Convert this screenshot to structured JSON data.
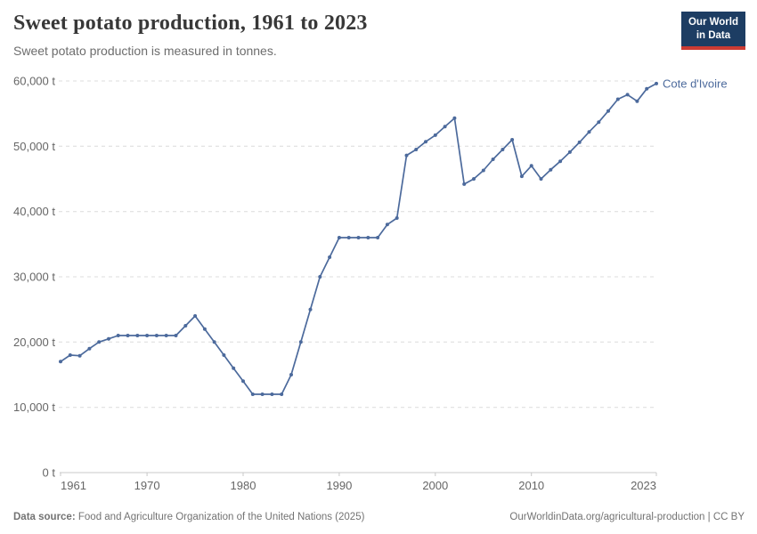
{
  "header": {
    "title": "Sweet potato production, 1961 to 2023",
    "subtitle": "Sweet potato production is measured in tonnes.",
    "logo": {
      "line1": "Our World",
      "line2": "in Data",
      "bg_color": "#1d3d63",
      "accent_color": "#cc3b33"
    }
  },
  "chart_data": {
    "type": "line",
    "title": "Sweet potato production, 1961 to 2023",
    "subtitle": "Sweet potato production is measured in tonnes.",
    "xlabel": "",
    "ylabel": "",
    "unit": "t",
    "xlim": [
      1961,
      2023
    ],
    "ylim": [
      0,
      60000
    ],
    "grid": "horizontal-dashed",
    "legend": "line-end-label",
    "x_ticks": [
      {
        "value": 1961,
        "label": "1961",
        "align": "start"
      },
      {
        "value": 1970,
        "label": "1970",
        "align": "middle"
      },
      {
        "value": 1980,
        "label": "1980",
        "align": "middle"
      },
      {
        "value": 1990,
        "label": "1990",
        "align": "middle"
      },
      {
        "value": 2000,
        "label": "2000",
        "align": "middle"
      },
      {
        "value": 2010,
        "label": "2010",
        "align": "middle"
      },
      {
        "value": 2023,
        "label": "2023",
        "align": "end"
      }
    ],
    "y_ticks": [
      {
        "value": 0,
        "label": "0 t"
      },
      {
        "value": 10000,
        "label": "10,000 t"
      },
      {
        "value": 20000,
        "label": "20,000 t"
      },
      {
        "value": 30000,
        "label": "30,000 t"
      },
      {
        "value": 40000,
        "label": "40,000 t"
      },
      {
        "value": 50000,
        "label": "50,000 t"
      },
      {
        "value": 60000,
        "label": "60,000 t"
      }
    ],
    "series": [
      {
        "name": "Cote d'Ivoire",
        "color": "#4c6a9c",
        "x": [
          1961,
          1962,
          1963,
          1964,
          1965,
          1966,
          1967,
          1968,
          1969,
          1970,
          1971,
          1972,
          1973,
          1974,
          1975,
          1976,
          1977,
          1978,
          1979,
          1980,
          1981,
          1982,
          1983,
          1984,
          1985,
          1986,
          1987,
          1988,
          1989,
          1990,
          1991,
          1992,
          1993,
          1994,
          1995,
          1996,
          1997,
          1998,
          1999,
          2000,
          2001,
          2002,
          2003,
          2004,
          2005,
          2006,
          2007,
          2008,
          2009,
          2010,
          2011,
          2012,
          2013,
          2014,
          2015,
          2016,
          2017,
          2018,
          2019,
          2020,
          2021,
          2022,
          2023
        ],
        "values": [
          17000,
          18000,
          17900,
          19000,
          20000,
          20500,
          21000,
          21000,
          21000,
          21000,
          21000,
          21000,
          21000,
          22500,
          24000,
          22000,
          20000,
          18000,
          16000,
          14000,
          12000,
          12000,
          12000,
          12000,
          15000,
          20000,
          25000,
          30000,
          33000,
          36000,
          36000,
          36000,
          36000,
          36000,
          38000,
          39000,
          48600,
          49500,
          50700,
          51700,
          53000,
          54300,
          44200,
          45000,
          46300,
          48000,
          49500,
          51000,
          45400,
          47000,
          45000,
          46400,
          47700,
          49100,
          50600,
          52200,
          53700,
          55400,
          57200,
          57900,
          56900,
          58800,
          59600
        ]
      }
    ]
  },
  "footer": {
    "source_label": "Data source:",
    "source_text": "Food and Agriculture Organization of the United Nations (2025)",
    "url": "OurWorldinData.org/agricultural-production",
    "separator": "|",
    "license": "CC BY"
  },
  "colors": {
    "line": "#4c6a9c",
    "grid": "#dcdcdc",
    "axis": "#c8c8c8",
    "tick_label": "#666666",
    "title": "#383838",
    "subtitle": "#6d6d6d",
    "footer": "#737373"
  }
}
